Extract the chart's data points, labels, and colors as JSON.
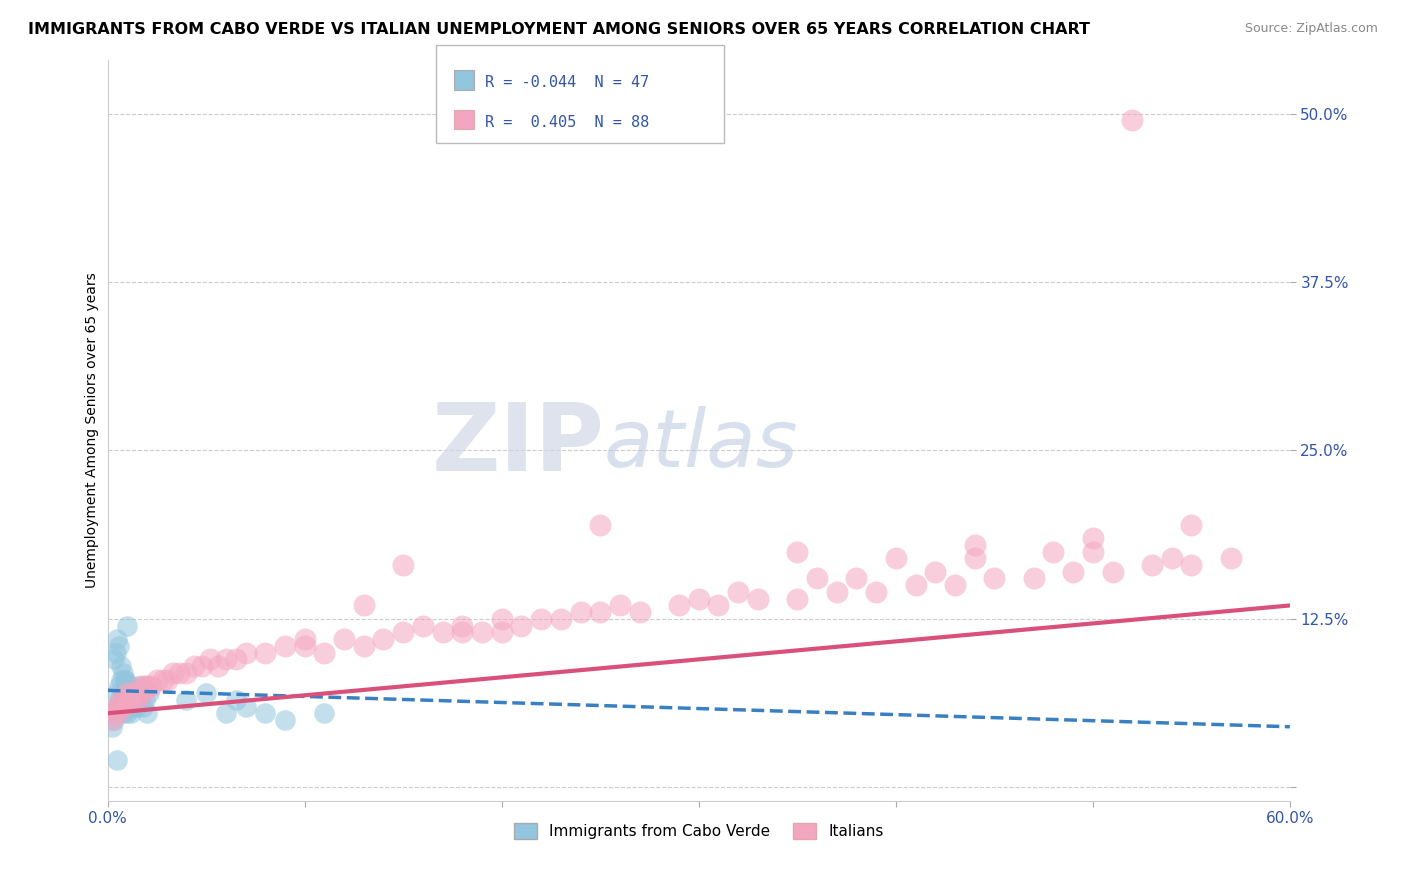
{
  "title": "IMMIGRANTS FROM CABO VERDE VS ITALIAN UNEMPLOYMENT AMONG SENIORS OVER 65 YEARS CORRELATION CHART",
  "source": "Source: ZipAtlas.com",
  "ylabel": "Unemployment Among Seniors over 65 years",
  "xlim": [
    0.0,
    0.6
  ],
  "ylim": [
    -0.01,
    0.54
  ],
  "yticks": [
    0.0,
    0.125,
    0.25,
    0.375,
    0.5
  ],
  "ytick_labels": [
    "",
    "12.5%",
    "25.0%",
    "37.5%",
    "50.0%"
  ],
  "xtick_show": [
    "0.0%",
    "60.0%"
  ],
  "xtick_pos": [
    0.0,
    0.6
  ],
  "legend_line1": "R = -0.044  N = 47",
  "legend_line2": "R =  0.405  N = 88",
  "blue_color": "#92c5de",
  "pink_color": "#f4a6c0",
  "blue_edge": "#5a9ec9",
  "pink_edge": "#e8799f",
  "blue_line_color": "#3a7fc1",
  "pink_line_color": "#d9517a",
  "watermark_zip": "ZIP",
  "watermark_atlas": "atlas",
  "background_color": "#ffffff",
  "grid_color": "#cccccc",
  "blue_scatter_x": [
    0.002,
    0.003,
    0.004,
    0.005,
    0.005,
    0.006,
    0.006,
    0.007,
    0.007,
    0.008,
    0.008,
    0.009,
    0.009,
    0.01,
    0.01,
    0.011,
    0.011,
    0.012,
    0.012,
    0.013,
    0.013,
    0.014,
    0.015,
    0.015,
    0.016,
    0.017,
    0.018,
    0.019,
    0.02,
    0.021,
    0.003,
    0.004,
    0.005,
    0.006,
    0.007,
    0.008,
    0.009,
    0.01,
    0.04,
    0.05,
    0.06,
    0.065,
    0.07,
    0.08,
    0.09,
    0.11,
    0.005
  ],
  "blue_scatter_y": [
    0.045,
    0.05,
    0.055,
    0.06,
    0.07,
    0.065,
    0.075,
    0.06,
    0.08,
    0.055,
    0.07,
    0.06,
    0.08,
    0.065,
    0.055,
    0.07,
    0.075,
    0.055,
    0.075,
    0.065,
    0.06,
    0.07,
    0.06,
    0.065,
    0.075,
    0.07,
    0.06,
    0.065,
    0.055,
    0.07,
    0.095,
    0.1,
    0.11,
    0.105,
    0.09,
    0.085,
    0.08,
    0.12,
    0.065,
    0.07,
    0.055,
    0.065,
    0.06,
    0.055,
    0.05,
    0.055,
    0.02
  ],
  "pink_scatter_x": [
    0.002,
    0.003,
    0.004,
    0.005,
    0.006,
    0.007,
    0.008,
    0.009,
    0.01,
    0.011,
    0.012,
    0.013,
    0.014,
    0.015,
    0.016,
    0.017,
    0.018,
    0.019,
    0.02,
    0.022,
    0.025,
    0.028,
    0.03,
    0.033,
    0.036,
    0.04,
    0.044,
    0.048,
    0.052,
    0.056,
    0.06,
    0.065,
    0.07,
    0.08,
    0.09,
    0.1,
    0.11,
    0.12,
    0.13,
    0.14,
    0.15,
    0.16,
    0.17,
    0.18,
    0.19,
    0.2,
    0.21,
    0.22,
    0.23,
    0.25,
    0.27,
    0.29,
    0.31,
    0.33,
    0.35,
    0.37,
    0.39,
    0.41,
    0.43,
    0.45,
    0.47,
    0.49,
    0.51,
    0.53,
    0.55,
    0.57,
    0.13,
    0.18,
    0.24,
    0.3,
    0.36,
    0.42,
    0.48,
    0.54,
    0.2,
    0.26,
    0.32,
    0.38,
    0.44,
    0.5,
    0.1,
    0.15,
    0.25,
    0.35,
    0.4,
    0.44,
    0.5,
    0.55
  ],
  "pink_scatter_y": [
    0.05,
    0.055,
    0.06,
    0.055,
    0.06,
    0.065,
    0.06,
    0.065,
    0.07,
    0.065,
    0.07,
    0.065,
    0.07,
    0.065,
    0.07,
    0.075,
    0.07,
    0.075,
    0.075,
    0.075,
    0.08,
    0.08,
    0.08,
    0.085,
    0.085,
    0.085,
    0.09,
    0.09,
    0.095,
    0.09,
    0.095,
    0.095,
    0.1,
    0.1,
    0.105,
    0.11,
    0.1,
    0.11,
    0.105,
    0.11,
    0.115,
    0.12,
    0.115,
    0.12,
    0.115,
    0.125,
    0.12,
    0.125,
    0.125,
    0.13,
    0.13,
    0.135,
    0.135,
    0.14,
    0.14,
    0.145,
    0.145,
    0.15,
    0.15,
    0.155,
    0.155,
    0.16,
    0.16,
    0.165,
    0.165,
    0.17,
    0.135,
    0.115,
    0.13,
    0.14,
    0.155,
    0.16,
    0.175,
    0.17,
    0.115,
    0.135,
    0.145,
    0.155,
    0.17,
    0.175,
    0.105,
    0.165,
    0.195,
    0.175,
    0.17,
    0.18,
    0.185,
    0.195
  ],
  "pink_outlier_x": [
    0.52
  ],
  "pink_outlier_y": [
    0.495
  ],
  "blue_trend_x": [
    0.0,
    0.6
  ],
  "blue_trend_y": [
    0.072,
    0.045
  ],
  "pink_trend_x": [
    0.0,
    0.6
  ],
  "pink_trend_y": [
    0.055,
    0.135
  ]
}
